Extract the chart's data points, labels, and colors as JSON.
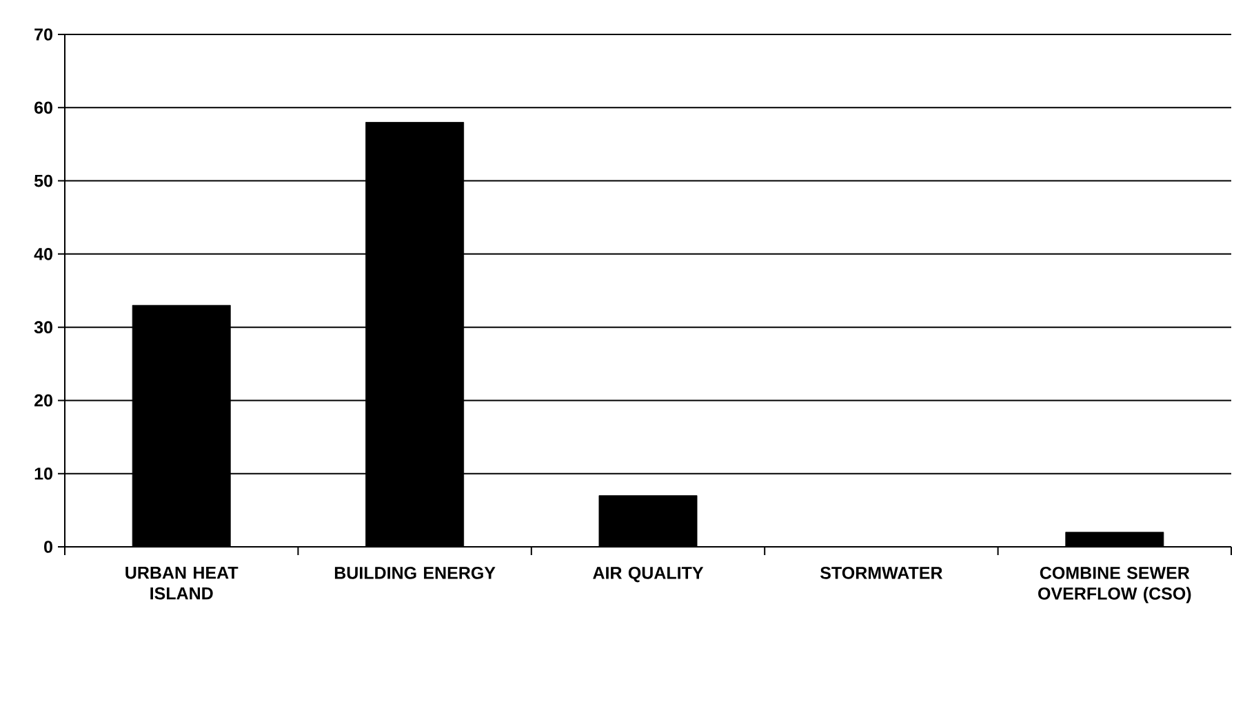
{
  "chart_data": {
    "type": "bar",
    "categories": [
      "URBAN HEAT ISLAND",
      "BUILDING ENERGY",
      "AIR QUALITY",
      "STORMWATER",
      "COMBINE SEWER OVERFLOW (CSO)"
    ],
    "values": [
      33,
      58,
      7,
      0,
      2
    ],
    "color": "#000000",
    "ylim": [
      0,
      70
    ],
    "yticks": [
      0,
      10,
      20,
      30,
      40,
      50,
      60,
      70
    ],
    "grid": "y"
  }
}
